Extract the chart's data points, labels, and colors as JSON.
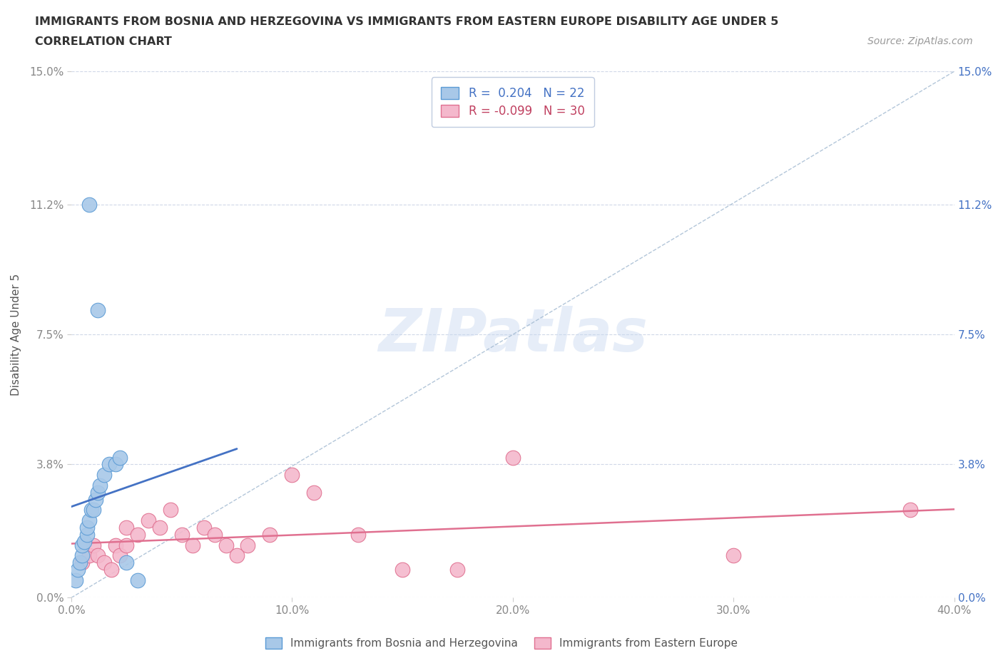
{
  "title_line1": "IMMIGRANTS FROM BOSNIA AND HERZEGOVINA VS IMMIGRANTS FROM EASTERN EUROPE DISABILITY AGE UNDER 5",
  "title_line2": "CORRELATION CHART",
  "source_text": "Source: ZipAtlas.com",
  "ylabel": "Disability Age Under 5",
  "xmin": 0.0,
  "xmax": 0.4,
  "ymin": 0.0,
  "ymax": 0.15,
  "yticks": [
    0.0,
    0.038,
    0.075,
    0.112,
    0.15
  ],
  "ytick_labels": [
    "0.0%",
    "3.8%",
    "7.5%",
    "11.2%",
    "15.0%"
  ],
  "xticks": [
    0.0,
    0.1,
    0.2,
    0.3,
    0.4
  ],
  "xtick_labels": [
    "0.0%",
    "10.0%",
    "20.0%",
    "30.0%",
    "40.0%"
  ],
  "bosnia_color_fill": "#a8c8e8",
  "bosnia_color_edge": "#5b9bd5",
  "eastern_color_fill": "#f4b8cc",
  "eastern_color_edge": "#e07090",
  "bosnia_line_color": "#4472c4",
  "eastern_line_color": "#e07090",
  "dash_line_color": "#a0b8d0",
  "grid_color": "#d0d8e8",
  "background_color": "#ffffff",
  "watermark": "ZIPatlas",
  "legend_label_bosnia": "Immigrants from Bosnia and Herzegovina",
  "legend_label_eastern": "Immigrants from Eastern Europe",
  "bosnia_R": 0.204,
  "bosnia_N": 22,
  "eastern_R": -0.099,
  "eastern_N": 30,
  "x_bosnia": [
    0.002,
    0.003,
    0.004,
    0.005,
    0.005,
    0.006,
    0.007,
    0.007,
    0.008,
    0.009,
    0.01,
    0.011,
    0.012,
    0.013,
    0.015,
    0.017,
    0.02,
    0.022,
    0.025,
    0.03,
    0.008,
    0.012
  ],
  "y_bosnia": [
    0.005,
    0.008,
    0.01,
    0.012,
    0.015,
    0.016,
    0.018,
    0.02,
    0.022,
    0.025,
    0.025,
    0.028,
    0.03,
    0.032,
    0.035,
    0.038,
    0.038,
    0.04,
    0.01,
    0.005,
    0.112,
    0.082
  ],
  "x_eastern": [
    0.005,
    0.008,
    0.01,
    0.012,
    0.015,
    0.018,
    0.02,
    0.022,
    0.025,
    0.025,
    0.03,
    0.035,
    0.04,
    0.045,
    0.05,
    0.055,
    0.06,
    0.065,
    0.07,
    0.075,
    0.08,
    0.09,
    0.1,
    0.11,
    0.13,
    0.15,
    0.175,
    0.2,
    0.3,
    0.38
  ],
  "y_eastern": [
    0.01,
    0.012,
    0.015,
    0.012,
    0.01,
    0.008,
    0.015,
    0.012,
    0.02,
    0.015,
    0.018,
    0.022,
    0.02,
    0.025,
    0.018,
    0.015,
    0.02,
    0.018,
    0.015,
    0.012,
    0.015,
    0.018,
    0.035,
    0.03,
    0.018,
    0.008,
    0.008,
    0.04,
    0.012,
    0.025
  ],
  "bosnia_line_x0": 0.0,
  "bosnia_line_x1": 0.075,
  "eastern_line_x0": 0.0,
  "eastern_line_x1": 0.4
}
